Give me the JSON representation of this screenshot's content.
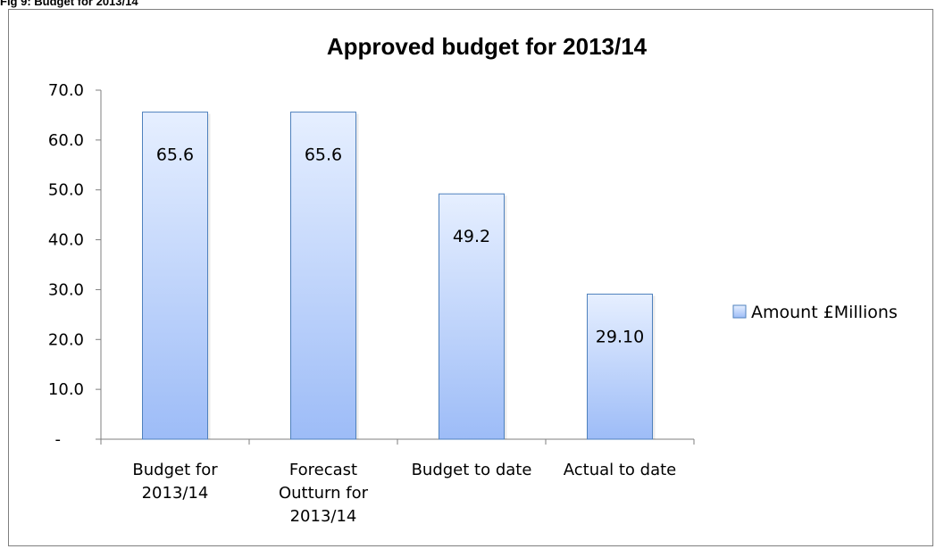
{
  "figure": {
    "caption": "Fig 9: Budget for 2013/14"
  },
  "colors": {
    "bar_top": "#e6efff",
    "bar_bottom": "#9dbcf7",
    "bar_edge": "#4f81bd",
    "axis": "#7f7f7f"
  },
  "chart_data": {
    "type": "bar",
    "title": "Approved budget for 2013/14",
    "categories": [
      [
        "Budget for",
        "2013/14"
      ],
      [
        "Forecast",
        "Outturn for",
        "2013/14"
      ],
      [
        "Budget to date"
      ],
      [
        "Actual to date"
      ]
    ],
    "series": [
      {
        "name": "Amount £Millions",
        "values": [
          65.6,
          65.6,
          49.2,
          29.1
        ],
        "labels": [
          "65.6",
          "65.6",
          "49.2",
          "29.10"
        ]
      }
    ],
    "ylim": [
      0,
      70
    ],
    "yticks": [
      0,
      10,
      20,
      30,
      40,
      50,
      60,
      70
    ],
    "ytick_labels": [
      "-",
      "10.0",
      "20.0",
      "30.0",
      "40.0",
      "50.0",
      "60.0",
      "70.0"
    ],
    "legend": "right",
    "grid": false
  }
}
